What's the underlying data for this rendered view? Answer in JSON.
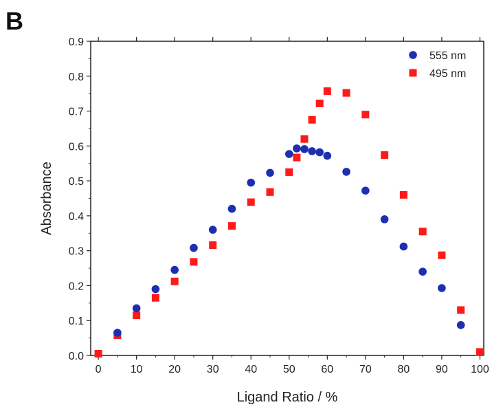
{
  "panel_label": "B",
  "chart_data": {
    "type": "scatter",
    "title": "",
    "xlabel": "Ligand Ratio / %",
    "ylabel": "Absorbance",
    "xlim": [
      -2,
      101
    ],
    "ylim": [
      0,
      0.9
    ],
    "xticks": [
      0,
      10,
      20,
      30,
      40,
      50,
      60,
      70,
      80,
      90,
      100
    ],
    "yticks": [
      0.0,
      0.1,
      0.2,
      0.3,
      0.4,
      0.5,
      0.6,
      0.7,
      0.8,
      0.9
    ],
    "grid": false,
    "legend_position": "top-right",
    "series": [
      {
        "name": "555 nm",
        "marker": "circle",
        "color": "#1c2fb0",
        "points": [
          [
            5,
            0.065
          ],
          [
            10,
            0.135
          ],
          [
            15,
            0.19
          ],
          [
            20,
            0.245
          ],
          [
            25,
            0.308
          ],
          [
            30,
            0.36
          ],
          [
            35,
            0.42
          ],
          [
            40,
            0.495
          ],
          [
            45,
            0.523
          ],
          [
            50,
            0.577
          ],
          [
            52,
            0.593
          ],
          [
            54,
            0.591
          ],
          [
            56,
            0.585
          ],
          [
            58,
            0.582
          ],
          [
            60,
            0.572
          ],
          [
            65,
            0.526
          ],
          [
            70,
            0.472
          ],
          [
            75,
            0.39
          ],
          [
            80,
            0.312
          ],
          [
            85,
            0.24
          ],
          [
            90,
            0.193
          ],
          [
            95,
            0.087
          ]
        ]
      },
      {
        "name": "495 nm",
        "marker": "square",
        "color": "#ff1a1a",
        "points": [
          [
            0,
            0.005
          ],
          [
            5,
            0.058
          ],
          [
            10,
            0.115
          ],
          [
            15,
            0.165
          ],
          [
            20,
            0.212
          ],
          [
            25,
            0.268
          ],
          [
            30,
            0.316
          ],
          [
            35,
            0.371
          ],
          [
            40,
            0.439
          ],
          [
            45,
            0.468
          ],
          [
            50,
            0.525
          ],
          [
            52,
            0.567
          ],
          [
            54,
            0.62
          ],
          [
            56,
            0.675
          ],
          [
            58,
            0.722
          ],
          [
            60,
            0.757
          ],
          [
            65,
            0.752
          ],
          [
            70,
            0.69
          ],
          [
            75,
            0.574
          ],
          [
            80,
            0.46
          ],
          [
            85,
            0.355
          ],
          [
            90,
            0.287
          ],
          [
            95,
            0.13
          ],
          [
            100,
            0.01
          ]
        ]
      }
    ]
  }
}
